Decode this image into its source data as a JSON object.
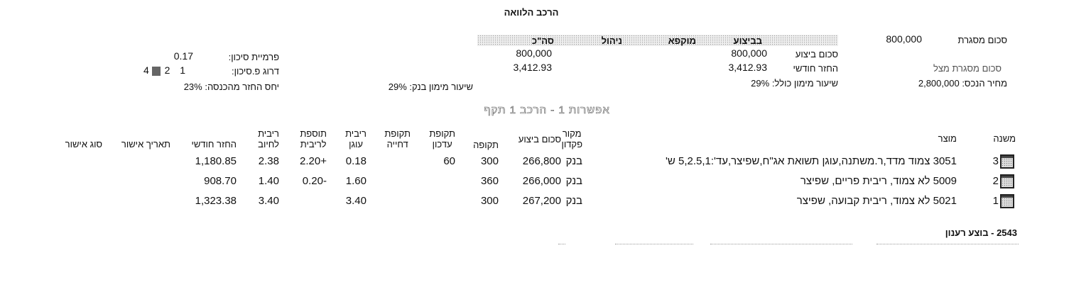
{
  "title": "הרכב הלוואה",
  "summary": {
    "frame_amount_label": "סכום מסגרת",
    "frame_amount_value": "800,000",
    "status_bar": {
      "in_execution": "בביצוע",
      "frozen": "מוקפא",
      "management": "ניהול",
      "total": "סה\"כ"
    },
    "exec_amount_label": "סכום ביצוע",
    "exec_amount_in_execution": "800,000",
    "exec_amount_total": "800,000",
    "monthly_payment_label": "החזר חודשי",
    "monthly_payment_in_execution": "3,412.93",
    "monthly_payment_total": "3,412.93",
    "shadow_frame_label": "סכום מסגרת מצל",
    "property_price": "מחיר הנכס: 2,800,000",
    "total_financing_rate": "שיעור מימון כולל: 29%",
    "bank_financing_rate": "שיעור מימון בנק: 29%",
    "risk_premium_label": "פרמיית סיכון:",
    "risk_premium_value": "0.17",
    "risk_rating_label": "דרוג פ.סיכון:",
    "risk_rating_options": [
      "1",
      "2",
      "3",
      "4"
    ],
    "risk_rating_selected": "3",
    "income_ratio": "יחס החזר מהכנסה: 23%"
  },
  "option_title": "אפשרות 1 - הרכב 1 תקף",
  "table": {
    "headers": {
      "sub": "משנה",
      "product": "מוצר",
      "source_1": "מקור",
      "source_2": "פקדון",
      "amount": "סכום ביצוע",
      "term": "תקופה",
      "update_1": "תקופת",
      "update_2": "עדכון",
      "defer_1": "תקופת",
      "defer_2": "דחייה",
      "anchor_1": "ריבית",
      "anchor_2": "עוגן",
      "add_1": "תוספת",
      "add_2": "לריבית",
      "rate_1": "ריבית",
      "rate_2": "לחיוב",
      "payment": "החזר חודשי",
      "approval_date": "תאריך אישור",
      "approval_type": "סוג אישור"
    },
    "rows": [
      {
        "sub": "3",
        "product": "3051 צמוד מדד,ר.משתנה,עוגן תשואת אג\"ח,שפיצר,עד':5,2.5,1 ש'",
        "source": "בנק",
        "amount": "266,800",
        "term": "300",
        "update": "60",
        "defer": "",
        "anchor": "0.18",
        "add": "+2.20",
        "rate": "2.38",
        "payment": "1,180.85",
        "approval_date": "",
        "approval_type": ""
      },
      {
        "sub": "2",
        "product": "5009 לא צמוד, ריבית פריים, שפיצר",
        "source": "בנק",
        "amount": "266,000",
        "term": "360",
        "update": "",
        "defer": "",
        "anchor": "1.60",
        "add": "-0.20",
        "rate": "1.40",
        "payment": "908.70",
        "approval_date": "",
        "approval_type": ""
      },
      {
        "sub": "1",
        "product": "5021 לא צמוד, ריבית קבועה, שפיצר",
        "source": "בנק",
        "amount": "267,200",
        "term": "300",
        "update": "",
        "defer": "",
        "anchor": "3.40",
        "add": "",
        "rate": "3.40",
        "payment": "1,323.38",
        "approval_date": "",
        "approval_type": ""
      }
    ]
  },
  "footer_status": "2543 - בוצע רענון"
}
